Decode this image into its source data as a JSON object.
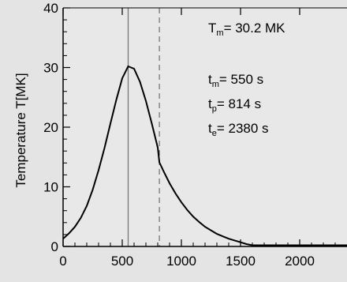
{
  "chart_data": {
    "type": "line",
    "title": "",
    "xlabel": "",
    "ylabel": "Temperature T[MK]",
    "xlim": [
      0,
      2400
    ],
    "ylim": [
      0,
      40
    ],
    "x_ticks": [
      0,
      500,
      1000,
      1500,
      2000
    ],
    "y_ticks": [
      0,
      10,
      20,
      30,
      40
    ],
    "grid": false,
    "vertical_markers": [
      {
        "x": 550,
        "style": "solid"
      },
      {
        "x": 814,
        "style": "dashed"
      }
    ],
    "series": [
      {
        "x": [
          0,
          50,
          100,
          150,
          200,
          250,
          300,
          350,
          400,
          450,
          500,
          550,
          600,
          650,
          700,
          750,
          800,
          814,
          850,
          900,
          950,
          1000,
          1050,
          1100,
          1150,
          1200,
          1250,
          1300,
          1350,
          1400,
          1450,
          1500,
          1550,
          1600,
          1700,
          1800,
          1900,
          2000,
          2100,
          2200,
          2300,
          2400
        ],
        "values": [
          1.3,
          2.2,
          3.3,
          4.8,
          6.8,
          9.5,
          12.8,
          16.5,
          20.6,
          24.6,
          28.2,
          30.2,
          29.8,
          27.6,
          24.4,
          20.6,
          16.6,
          14.1,
          12.6,
          10.6,
          8.9,
          7.4,
          6.1,
          5.0,
          4.1,
          3.3,
          2.7,
          2.1,
          1.7,
          1.3,
          1.0,
          0.7,
          0.4,
          0.2,
          0.2,
          0.2,
          0.2,
          0.2,
          0.2,
          0.2,
          0.2,
          0.2
        ],
        "color": "#000000"
      }
    ],
    "annotations": [
      {
        "main": "T",
        "sub": "m",
        "rest": "= 30.2 MK"
      },
      {
        "main": "t",
        "sub": "m",
        "rest": "=  550 s"
      },
      {
        "main": "t",
        "sub": "p",
        "rest": "=  814 s"
      },
      {
        "main": "t",
        "sub": "e",
        "rest": "= 2380 s"
      }
    ]
  }
}
